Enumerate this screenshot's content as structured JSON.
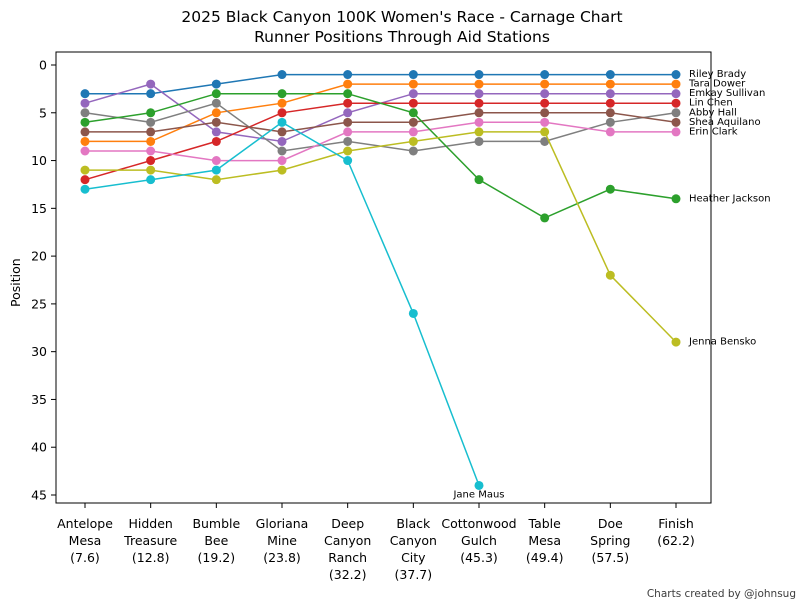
{
  "footer_credit": "Charts created by @johnsug",
  "chart_data": {
    "type": "line",
    "title": "2025 Black Canyon 100K Women's Race - Carnage Chart",
    "subtitle": "Runner Positions Through Aid Stations",
    "xlabel": "",
    "ylabel": "Position",
    "y_ticks": [
      0,
      5,
      10,
      15,
      20,
      25,
      30,
      35,
      40,
      45
    ],
    "ylim": [
      0,
      45
    ],
    "y_inverted": true,
    "grid": false,
    "legend_position": "line-end-labels",
    "categories": [
      "Antelope Mesa (7.6)",
      "Hidden Treasure (12.8)",
      "Bumble Bee (19.2)",
      "Gloriana Mine (23.8)",
      "Deep Canyon Ranch (32.2)",
      "Black Canyon City (37.7)",
      "Cottonwood Gulch (45.3)",
      "Table Mesa (49.4)",
      "Doe Spring (57.5)",
      "Finish (62.2)"
    ],
    "x_tick_lines": [
      [
        "Antelope",
        "Mesa",
        "(7.6)"
      ],
      [
        "Hidden",
        "Treasure",
        "(12.8)"
      ],
      [
        "Bumble",
        "Bee",
        "(19.2)"
      ],
      [
        "Gloriana",
        "Mine",
        "(23.8)"
      ],
      [
        "Deep",
        "Canyon",
        "Ranch",
        "(32.2)"
      ],
      [
        "Black",
        "Canyon",
        "City",
        "(37.7)"
      ],
      [
        "Cottonwood",
        "Gulch",
        "(45.3)"
      ],
      [
        "Table",
        "Mesa",
        "(49.4)"
      ],
      [
        "Doe",
        "Spring",
        "(57.5)"
      ],
      [
        "Finish",
        "(62.2)"
      ]
    ],
    "series": [
      {
        "name": "Riley Brady",
        "color": "#1f77b4",
        "label_placement": "right",
        "positions": [
          3,
          3,
          2,
          1,
          1,
          1,
          1,
          1,
          1,
          1
        ]
      },
      {
        "name": "Tara Dower",
        "color": "#ff7f0e",
        "label_placement": "right",
        "positions": [
          8,
          8,
          5,
          4,
          2,
          2,
          2,
          2,
          2,
          2
        ]
      },
      {
        "name": "Emkay Sullivan",
        "color": "#9467bd",
        "label_placement": "right",
        "positions": [
          4,
          2,
          7,
          8,
          5,
          3,
          3,
          3,
          3,
          3
        ]
      },
      {
        "name": "Lin Chen",
        "color": "#d62728",
        "label_placement": "right",
        "positions": [
          12,
          10,
          8,
          5,
          4,
          4,
          4,
          4,
          4,
          4
        ]
      },
      {
        "name": "Abby Hall",
        "color": "#7f7f7f",
        "label_placement": "right",
        "positions": [
          5,
          6,
          4,
          9,
          8,
          9,
          8,
          8,
          6,
          5
        ]
      },
      {
        "name": "Shea Aquilano",
        "color": "#8c564b",
        "label_placement": "right",
        "positions": [
          7,
          7,
          6,
          7,
          6,
          6,
          5,
          5,
          5,
          6
        ]
      },
      {
        "name": "Erin  Clark",
        "color": "#e377c2",
        "label_placement": "right",
        "positions": [
          9,
          9,
          10,
          10,
          7,
          7,
          6,
          6,
          7,
          7
        ]
      },
      {
        "name": "Heather Jackson",
        "color": "#2ca02c",
        "label_placement": "right",
        "positions": [
          6,
          5,
          3,
          3,
          3,
          5,
          12,
          16,
          13,
          14
        ]
      },
      {
        "name": "Jenna Bensko",
        "color": "#bcbd22",
        "label_placement": "right",
        "positions": [
          11,
          11,
          12,
          11,
          9,
          8,
          7,
          7,
          22,
          29
        ]
      },
      {
        "name": "Jane Maus",
        "color": "#17becf",
        "label_placement": "below",
        "positions": [
          13,
          12,
          11,
          6,
          10,
          26,
          44,
          null,
          null,
          null
        ]
      }
    ]
  }
}
